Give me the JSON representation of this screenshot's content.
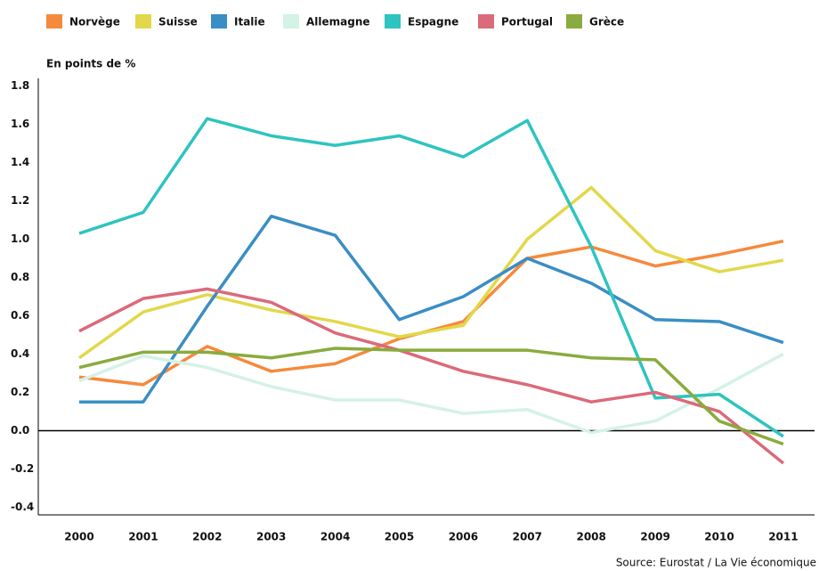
{
  "chart_data": {
    "type": "line",
    "y_label": "En points de %",
    "source": "Source: Eurostat / La Vie économique",
    "categories": [
      "2000",
      "2001",
      "2002",
      "2003",
      "2004",
      "2005",
      "2006",
      "2007",
      "2008",
      "2009",
      "2010",
      "2011"
    ],
    "ylim": [
      -0.44,
      1.84
    ],
    "yticks": [
      1.8,
      1.6,
      1.4,
      1.2,
      {
        "value": 1.0,
        "label": "1.0"
      },
      0.8,
      0.6,
      0.4,
      0.2,
      {
        "value": 0,
        "label": "0.0"
      },
      -0.2,
      -0.4
    ],
    "series": [
      {
        "name": "Norvège",
        "color": "#f58a3c",
        "values": [
          0.28,
          0.24,
          0.44,
          0.31,
          0.35,
          0.48,
          0.57,
          0.9,
          0.96,
          0.86,
          0.92,
          0.99
        ]
      },
      {
        "name": "Suisse",
        "color": "#e2d84a",
        "values": [
          0.38,
          0.62,
          0.71,
          0.63,
          0.57,
          0.49,
          0.55,
          1.0,
          1.27,
          0.94,
          0.83,
          0.89
        ]
      },
      {
        "name": "Italie",
        "color": "#3a8ec4",
        "values": [
          0.15,
          0.15,
          0.65,
          1.12,
          1.02,
          0.58,
          0.7,
          0.9,
          0.77,
          0.58,
          0.57,
          0.46
        ]
      },
      {
        "name": "Allemagne",
        "color": "#d4f2e6",
        "values": [
          0.26,
          0.39,
          0.33,
          0.23,
          0.16,
          0.16,
          0.09,
          0.11,
          -0.01,
          0.05,
          0.22,
          0.4
        ]
      },
      {
        "name": "Espagne",
        "color": "#2ec4c0",
        "values": [
          1.03,
          1.14,
          1.63,
          1.54,
          1.49,
          1.54,
          1.43,
          1.62,
          0.96,
          0.17,
          0.19,
          -0.03
        ]
      },
      {
        "name": "Portugal",
        "color": "#db6a7a",
        "values": [
          0.52,
          0.69,
          0.74,
          0.67,
          0.51,
          0.42,
          0.31,
          0.24,
          0.15,
          0.2,
          0.1,
          -0.17
        ]
      },
      {
        "name": "Grèce",
        "color": "#8aab3e",
        "values": [
          0.33,
          0.41,
          0.41,
          0.38,
          0.43,
          0.42,
          0.42,
          0.42,
          0.38,
          0.37,
          0.05,
          -0.07
        ]
      }
    ]
  }
}
